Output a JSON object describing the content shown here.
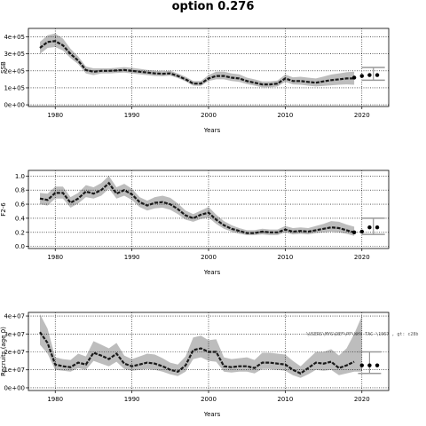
{
  "figure": {
    "title": "option 0.276"
  },
  "chart_data": [
    {
      "type": "line",
      "ylabel": "SSB",
      "xlabel": "Years",
      "xlim": [
        1976.5,
        2023.5
      ],
      "ylim": [
        -10000,
        450000
      ],
      "xticks": [
        1980,
        1990,
        2000,
        2010,
        2020
      ],
      "xtick_labels": [
        "1980",
        "1990",
        "2000",
        "2010",
        "2020"
      ],
      "yticks": [
        0,
        100000,
        200000,
        300000,
        400000
      ],
      "ytick_labels": [
        "0e+00",
        "1e+05",
        "2e+05",
        "3e+05",
        "4e+05"
      ],
      "grid": true,
      "years": [
        1978,
        1979,
        1980,
        1981,
        1982,
        1983,
        1984,
        1985,
        1986,
        1987,
        1988,
        1989,
        1990,
        1991,
        1992,
        1993,
        1994,
        1995,
        1996,
        1997,
        1998,
        1999,
        2000,
        2001,
        2002,
        2003,
        2004,
        2005,
        2006,
        2007,
        2008,
        2009,
        2010,
        2011,
        2012,
        2013,
        2014,
        2015,
        2016,
        2017,
        2018,
        2019
      ],
      "estimate": [
        335000,
        370000,
        375000,
        350000,
        300000,
        260000,
        205000,
        195000,
        200000,
        200000,
        202000,
        205000,
        200000,
        195000,
        190000,
        185000,
        183000,
        185000,
        170000,
        150000,
        125000,
        125000,
        155000,
        170000,
        170000,
        160000,
        155000,
        140000,
        130000,
        120000,
        120000,
        125000,
        155000,
        140000,
        140000,
        135000,
        130000,
        138000,
        145000,
        150000,
        155000,
        155000
      ],
      "lower": [
        300000,
        335000,
        340000,
        320000,
        275000,
        240000,
        185000,
        175000,
        185000,
        185000,
        187000,
        190000,
        185000,
        180000,
        175000,
        170000,
        168000,
        172000,
        158000,
        138000,
        113000,
        112000,
        140000,
        150000,
        150000,
        140000,
        135000,
        122000,
        113000,
        104000,
        103000,
        108000,
        135000,
        120000,
        118000,
        113000,
        108000,
        112000,
        115000,
        118000,
        120000,
        118000
      ],
      "upper": [
        370000,
        410000,
        420000,
        390000,
        330000,
        285000,
        225000,
        215000,
        215000,
        215000,
        218000,
        222000,
        218000,
        212000,
        206000,
        200000,
        198000,
        200000,
        185000,
        165000,
        140000,
        140000,
        175000,
        195000,
        195000,
        185000,
        180000,
        160000,
        150000,
        138000,
        138000,
        143000,
        178000,
        162000,
        165000,
        160000,
        155000,
        166000,
        178000,
        185000,
        192000,
        195000
      ],
      "projection_years": [
        2019,
        2020,
        2021,
        2022
      ],
      "projection_points": [
        160000,
        170000,
        175000,
        175000
      ],
      "projection_interval": {
        "year": 2021.5,
        "lower": 145000,
        "upper": 220000
      }
    },
    {
      "type": "line",
      "ylabel": "F2-6",
      "xlabel": "Years",
      "xlim": [
        1976.5,
        2023.5
      ],
      "ylim": [
        -0.03,
        1.08
      ],
      "xticks": [
        1980,
        1990,
        2000,
        2010,
        2020
      ],
      "xtick_labels": [
        "1980",
        "1990",
        "2000",
        "2010",
        "2020"
      ],
      "yticks": [
        0.0,
        0.2,
        0.4,
        0.6,
        0.8,
        1.0
      ],
      "ytick_labels": [
        "0.0",
        "0.2",
        "0.4",
        "0.6",
        "0.8",
        "1.0"
      ],
      "grid": true,
      "years": [
        1978,
        1979,
        1980,
        1981,
        1982,
        1983,
        1984,
        1985,
        1986,
        1987,
        1988,
        1989,
        1990,
        1991,
        1992,
        1993,
        1994,
        1995,
        1996,
        1997,
        1998,
        1999,
        2000,
        2001,
        2002,
        2003,
        2004,
        2005,
        2006,
        2007,
        2008,
        2009,
        2010,
        2011,
        2012,
        2013,
        2014,
        2015,
        2016,
        2017,
        2018,
        2019
      ],
      "estimate": [
        0.68,
        0.66,
        0.76,
        0.76,
        0.62,
        0.68,
        0.78,
        0.75,
        0.8,
        0.9,
        0.75,
        0.8,
        0.74,
        0.63,
        0.58,
        0.62,
        0.63,
        0.6,
        0.53,
        0.44,
        0.4,
        0.45,
        0.48,
        0.38,
        0.3,
        0.25,
        0.22,
        0.19,
        0.19,
        0.21,
        0.2,
        0.2,
        0.24,
        0.21,
        0.22,
        0.21,
        0.23,
        0.25,
        0.27,
        0.26,
        0.23,
        0.2
      ],
      "lower": [
        0.6,
        0.58,
        0.68,
        0.68,
        0.55,
        0.61,
        0.7,
        0.68,
        0.72,
        0.82,
        0.68,
        0.72,
        0.66,
        0.56,
        0.51,
        0.54,
        0.55,
        0.52,
        0.46,
        0.38,
        0.35,
        0.39,
        0.41,
        0.32,
        0.25,
        0.21,
        0.18,
        0.16,
        0.16,
        0.17,
        0.16,
        0.16,
        0.2,
        0.17,
        0.18,
        0.17,
        0.19,
        0.2,
        0.21,
        0.2,
        0.18,
        0.15
      ],
      "upper": [
        0.76,
        0.75,
        0.85,
        0.85,
        0.7,
        0.76,
        0.87,
        0.84,
        0.9,
        1.0,
        0.84,
        0.89,
        0.82,
        0.7,
        0.65,
        0.7,
        0.72,
        0.69,
        0.61,
        0.51,
        0.46,
        0.51,
        0.56,
        0.45,
        0.36,
        0.3,
        0.26,
        0.23,
        0.23,
        0.25,
        0.24,
        0.24,
        0.29,
        0.26,
        0.27,
        0.26,
        0.29,
        0.32,
        0.36,
        0.35,
        0.31,
        0.28
      ],
      "projection_years": [
        2019,
        2020,
        2021,
        2022
      ],
      "projection_points": [
        0.2,
        0.21,
        0.27,
        0.27
      ],
      "projection_interval": {
        "year": 2021.5,
        "lower": 0.17,
        "upper": 0.4
      }
    },
    {
      "type": "line",
      "ylabel": "Recruits (age 0)",
      "xlabel": "Years",
      "xlim": [
        1976.5,
        2023.5
      ],
      "ylim": [
        -1500000,
        42000000
      ],
      "xticks": [
        1980,
        1990,
        2000,
        2010,
        2020
      ],
      "xtick_labels": [
        "1980",
        "1990",
        "2000",
        "2010",
        "2020"
      ],
      "yticks": [
        0,
        10000000,
        20000000,
        30000000,
        40000000
      ],
      "ytick_labels": [
        "0e+00",
        "1e+07",
        "2e+07",
        "3e+07",
        "4e+07"
      ],
      "grid": true,
      "years": [
        1978,
        1979,
        1980,
        1981,
        1982,
        1983,
        1984,
        1985,
        1986,
        1987,
        1988,
        1989,
        1990,
        1991,
        1992,
        1993,
        1994,
        1995,
        1996,
        1997,
        1998,
        1999,
        2000,
        2001,
        2002,
        2003,
        2004,
        2005,
        2006,
        2007,
        2008,
        2009,
        2010,
        2011,
        2012,
        2013,
        2014,
        2015,
        2016,
        2017,
        2018,
        2019
      ],
      "estimate": [
        31000000,
        25000000,
        13000000,
        12000000,
        11500000,
        14000000,
        13000000,
        19500000,
        18000000,
        16000000,
        19000000,
        13500000,
        12000000,
        13000000,
        14000000,
        13500000,
        12000000,
        10000000,
        9000000,
        12500000,
        21000000,
        22000000,
        20000000,
        20000000,
        12000000,
        11500000,
        12000000,
        12000000,
        11000000,
        14000000,
        14000000,
        13500000,
        13000000,
        10000000,
        8000000,
        11000000,
        14000000,
        13500000,
        14500000,
        11000000,
        12500000,
        14500000
      ],
      "lower": [
        24000000,
        19000000,
        10000000,
        9500000,
        9000000,
        11000000,
        10000000,
        15000000,
        13500000,
        12000000,
        14500000,
        10500000,
        9500000,
        10000000,
        10500000,
        10000000,
        9000000,
        7500000,
        6500000,
        9000000,
        16000000,
        17000000,
        15000000,
        14500000,
        9000000,
        8500000,
        9000000,
        9000000,
        8000000,
        10500000,
        10500000,
        10000000,
        9500000,
        7000000,
        5500000,
        7500000,
        10000000,
        9500000,
        10000000,
        7000000,
        8000000,
        9000000
      ],
      "upper": [
        41000000,
        33000000,
        17000000,
        16000000,
        15500000,
        19000000,
        17500000,
        26000000,
        24000000,
        22000000,
        25000000,
        18000000,
        16000000,
        17500000,
        19000000,
        18500000,
        16500000,
        14000000,
        13000000,
        17500000,
        28000000,
        29000000,
        26500000,
        27000000,
        17000000,
        16000000,
        16500000,
        17000000,
        15500000,
        19500000,
        19500000,
        19000000,
        18500000,
        15000000,
        12000000,
        16000000,
        20000000,
        20000000,
        21500000,
        18000000,
        22000000,
        30000000
      ],
      "extra_upper_year": 2020,
      "extra_upper_value": 40000000,
      "projection_years": [
        2020,
        2021,
        2022
      ],
      "projection_points": [
        12500000,
        12500000,
        12500000
      ],
      "projection_interval": {
        "year": 2021,
        "lower": 8000000,
        "upper": 20000000
      },
      "annotation": "\\USERS\\MYS\\DEF\\PP\\WHY TAC \\1967 , gt: c28b"
    }
  ]
}
